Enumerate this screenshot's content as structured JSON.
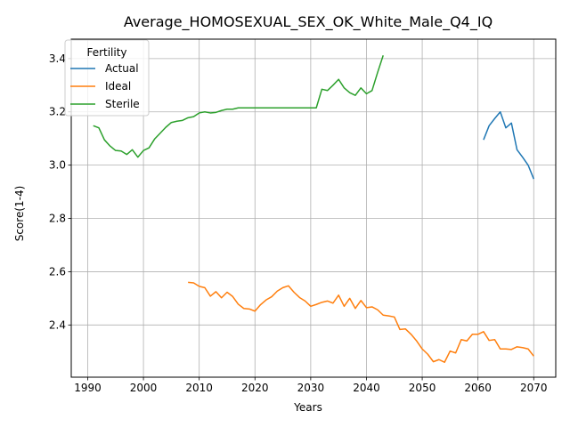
{
  "chart_data": {
    "type": "line",
    "title": "Average_HOMOSEXUAL_SEX_OK_White_Male_Q4_IQ",
    "xlabel": "Years",
    "ylabel": "Score(1-4)",
    "xlim": [
      1987.05,
      2073.95
    ],
    "ylim": [
      2.204,
      3.473
    ],
    "xticks": [
      1990,
      2000,
      2010,
      2020,
      2030,
      2040,
      2050,
      2060,
      2070
    ],
    "yticks": [
      2.4,
      2.6,
      2.8,
      3.0,
      3.2,
      3.4
    ],
    "xtick_labels": [
      "1990",
      "2000",
      "2010",
      "2020",
      "2030",
      "2040",
      "2050",
      "2060",
      "2070"
    ],
    "ytick_labels": [
      "2.4",
      "2.6",
      "2.8",
      "3.0",
      "3.2",
      "3.4"
    ],
    "grid": true,
    "legend": {
      "title": "Fertility",
      "placement": "upper-left"
    },
    "series": [
      {
        "name": "Actual",
        "color": "#1f77b4",
        "x": [
          2061,
          2062,
          2063,
          2064,
          2065,
          2066,
          2067,
          2068,
          2069,
          2070
        ],
        "y": [
          3.095,
          3.148,
          3.175,
          3.2,
          3.14,
          3.158,
          3.058,
          3.03,
          3.0,
          2.948
        ]
      },
      {
        "name": "Ideal",
        "color": "#ff7f0e",
        "x": [
          2008,
          2009,
          2010,
          2011,
          2012,
          2013,
          2014,
          2015,
          2016,
          2017,
          2018,
          2019,
          2020,
          2021,
          2022,
          2023,
          2024,
          2025,
          2026,
          2027,
          2028,
          2029,
          2030,
          2031,
          2032,
          2033,
          2034,
          2035,
          2036,
          2037,
          2038,
          2039,
          2040,
          2041,
          2042,
          2043,
          2044,
          2045,
          2046,
          2047,
          2048,
          2049,
          2050,
          2051,
          2052,
          2053,
          2054,
          2055,
          2056,
          2057,
          2058,
          2059,
          2060,
          2061,
          2062,
          2063,
          2064,
          2065,
          2066,
          2067,
          2068,
          2069,
          2070
        ],
        "y": [
          2.56,
          2.558,
          2.545,
          2.54,
          2.508,
          2.525,
          2.502,
          2.523,
          2.507,
          2.478,
          2.462,
          2.46,
          2.452,
          2.476,
          2.494,
          2.506,
          2.527,
          2.54,
          2.547,
          2.523,
          2.503,
          2.49,
          2.47,
          2.477,
          2.485,
          2.49,
          2.482,
          2.512,
          2.47,
          2.5,
          2.462,
          2.492,
          2.465,
          2.468,
          2.457,
          2.437,
          2.434,
          2.43,
          2.383,
          2.385,
          2.365,
          2.34,
          2.31,
          2.29,
          2.262,
          2.27,
          2.26,
          2.302,
          2.295,
          2.345,
          2.34,
          2.365,
          2.365,
          2.375,
          2.342,
          2.345,
          2.31,
          2.31,
          2.308,
          2.318,
          2.315,
          2.31,
          2.283
        ]
      },
      {
        "name": "Sterile",
        "color": "#2ca02c",
        "x": [
          1991,
          1992,
          1993,
          1994,
          1995,
          1996,
          1997,
          1998,
          1999,
          2000,
          2001,
          2002,
          2003,
          2004,
          2005,
          2006,
          2007,
          2008,
          2009,
          2010,
          2011,
          2012,
          2013,
          2014,
          2015,
          2016,
          2017,
          2018,
          2019,
          2020,
          2021,
          2022,
          2023,
          2024,
          2025,
          2026,
          2027,
          2028,
          2029,
          2030,
          2031,
          2032,
          2033,
          2034,
          2035,
          2036,
          2037,
          2038,
          2039,
          2040,
          2041,
          2042,
          2043
        ],
        "y": [
          3.148,
          3.14,
          3.095,
          3.072,
          3.055,
          3.053,
          3.04,
          3.058,
          3.03,
          3.055,
          3.065,
          3.098,
          3.12,
          3.142,
          3.16,
          3.165,
          3.168,
          3.178,
          3.182,
          3.196,
          3.2,
          3.196,
          3.198,
          3.205,
          3.21,
          3.21,
          3.215,
          3.215,
          3.215,
          3.215,
          3.215,
          3.215,
          3.215,
          3.215,
          3.215,
          3.215,
          3.215,
          3.215,
          3.215,
          3.215,
          3.215,
          3.285,
          3.28,
          3.3,
          3.322,
          3.29,
          3.272,
          3.262,
          3.29,
          3.268,
          3.28,
          3.348,
          3.412
        ]
      }
    ]
  }
}
